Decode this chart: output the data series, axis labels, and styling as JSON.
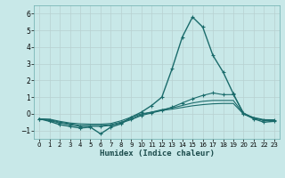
{
  "title": "",
  "xlabel": "Humidex (Indice chaleur)",
  "ylabel": "",
  "background_color": "#c8e8e8",
  "grid_color": "#b8d0d0",
  "line_color": "#1a6b6b",
  "xlim": [
    -0.5,
    23.5
  ],
  "ylim": [
    -1.5,
    6.5
  ],
  "yticks": [
    -1,
    0,
    1,
    2,
    3,
    4,
    5,
    6
  ],
  "xticks": [
    0,
    1,
    2,
    3,
    4,
    5,
    6,
    7,
    8,
    9,
    10,
    11,
    12,
    13,
    14,
    15,
    16,
    17,
    18,
    19,
    20,
    21,
    22,
    23
  ],
  "lines": [
    {
      "x": [
        0,
        1,
        2,
        3,
        4,
        5,
        6,
        7,
        8,
        9,
        10,
        11,
        12,
        13,
        14,
        15,
        16,
        17,
        18,
        19,
        20,
        21,
        22,
        23
      ],
      "y": [
        -0.3,
        -0.45,
        -0.65,
        -0.75,
        -0.85,
        -0.8,
        -1.2,
        -0.8,
        -0.6,
        -0.2,
        0.1,
        0.5,
        1.0,
        2.7,
        4.6,
        5.8,
        5.2,
        3.5,
        2.5,
        1.2,
        0.0,
        -0.3,
        -0.5,
        -0.45
      ],
      "marker": true,
      "lw": 1.0
    },
    {
      "x": [
        0,
        1,
        2,
        3,
        4,
        5,
        6,
        7,
        8,
        9,
        10,
        11,
        12,
        13,
        14,
        15,
        16,
        17,
        18,
        19,
        20,
        21,
        22,
        23
      ],
      "y": [
        -0.3,
        -0.4,
        -0.55,
        -0.65,
        -0.75,
        -0.75,
        -0.75,
        -0.7,
        -0.55,
        -0.35,
        -0.1,
        0.05,
        0.2,
        0.4,
        0.65,
        0.9,
        1.1,
        1.25,
        1.15,
        1.15,
        0.05,
        -0.25,
        -0.4,
        -0.4
      ],
      "marker": true,
      "lw": 0.8
    },
    {
      "x": [
        0,
        1,
        2,
        3,
        4,
        5,
        6,
        7,
        8,
        9,
        10,
        11,
        12,
        13,
        14,
        15,
        16,
        17,
        18,
        19,
        20,
        21,
        22,
        23
      ],
      "y": [
        -0.3,
        -0.35,
        -0.5,
        -0.6,
        -0.7,
        -0.7,
        -0.7,
        -0.65,
        -0.5,
        -0.3,
        -0.05,
        0.1,
        0.25,
        0.35,
        0.5,
        0.65,
        0.75,
        0.8,
        0.8,
        0.8,
        0.0,
        -0.25,
        -0.38,
        -0.38
      ],
      "marker": false,
      "lw": 0.8
    },
    {
      "x": [
        0,
        1,
        2,
        3,
        4,
        5,
        6,
        7,
        8,
        9,
        10,
        11,
        12,
        13,
        14,
        15,
        16,
        17,
        18,
        19,
        20,
        21,
        22,
        23
      ],
      "y": [
        -0.3,
        -0.32,
        -0.45,
        -0.55,
        -0.6,
        -0.62,
        -0.62,
        -0.58,
        -0.42,
        -0.2,
        0.0,
        0.1,
        0.2,
        0.28,
        0.38,
        0.48,
        0.55,
        0.6,
        0.62,
        0.62,
        -0.02,
        -0.22,
        -0.35,
        -0.36
      ],
      "marker": false,
      "lw": 0.8
    }
  ]
}
